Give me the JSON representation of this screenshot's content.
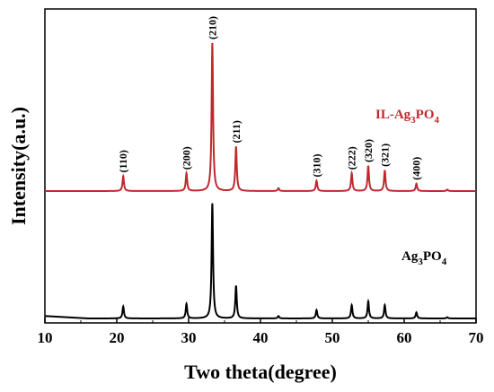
{
  "chart_data": {
    "type": "line",
    "xlabel": "Two theta(degree)",
    "ylabel": "Intensity(a.u.)",
    "xlim": [
      10,
      70
    ],
    "xticks": [
      10,
      20,
      30,
      40,
      50,
      60,
      70
    ],
    "y_ticks_shown": false,
    "grid": false,
    "series": [
      {
        "name": "IL-Ag3PO4",
        "label_main": "IL-Ag",
        "label_sub": "3",
        "label_main2": "PO",
        "label_sub2": "4",
        "color": "#c0282d",
        "baseline": 0.0,
        "peaks": [
          {
            "x": 20.9,
            "h": 0.1
          },
          {
            "x": 29.7,
            "h": 0.12
          },
          {
            "x": 33.3,
            "h": 1.0
          },
          {
            "x": 36.6,
            "h": 0.3
          },
          {
            "x": 42.5,
            "h": 0.02
          },
          {
            "x": 47.8,
            "h": 0.07
          },
          {
            "x": 52.7,
            "h": 0.12
          },
          {
            "x": 55.0,
            "h": 0.17
          },
          {
            "x": 57.3,
            "h": 0.14
          },
          {
            "x": 61.7,
            "h": 0.05
          },
          {
            "x": 66.0,
            "h": 0.01
          }
        ]
      },
      {
        "name": "Ag3PO4",
        "label_main": "Ag",
        "label_sub": "3",
        "label_main2": "PO",
        "label_sub2": "4",
        "color": "#000000",
        "baseline": 0.0,
        "peaks": [
          {
            "x": 20.9,
            "h": 0.1
          },
          {
            "x": 29.7,
            "h": 0.12
          },
          {
            "x": 33.3,
            "h": 0.95
          },
          {
            "x": 36.6,
            "h": 0.27
          },
          {
            "x": 42.5,
            "h": 0.02
          },
          {
            "x": 47.8,
            "h": 0.07
          },
          {
            "x": 52.7,
            "h": 0.11
          },
          {
            "x": 55.0,
            "h": 0.14
          },
          {
            "x": 57.3,
            "h": 0.11
          },
          {
            "x": 61.7,
            "h": 0.05
          },
          {
            "x": 66.0,
            "h": 0.01
          }
        ]
      }
    ],
    "annotations": [
      {
        "text": "(110)",
        "x": 20.9
      },
      {
        "text": "(200)",
        "x": 29.7
      },
      {
        "text": "(210)",
        "x": 33.3
      },
      {
        "text": "(211)",
        "x": 36.6
      },
      {
        "text": "(310)",
        "x": 47.8
      },
      {
        "text": "(222)",
        "x": 52.7
      },
      {
        "text": "(320)",
        "x": 55.0
      },
      {
        "text": "(321)",
        "x": 57.3
      },
      {
        "text": "(400)",
        "x": 61.7
      }
    ]
  }
}
